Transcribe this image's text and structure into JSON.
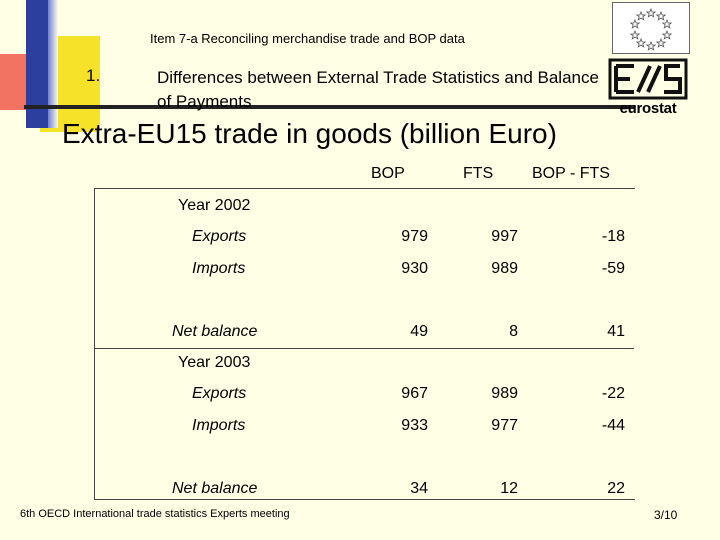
{
  "header": {
    "item_title": "Item 7-a  Reconciling merchandise trade and BOP data",
    "section_number": "1.",
    "section_title": "Differences between External Trade Statistics and Balance of Payments"
  },
  "logo": {
    "wordmark": "eurostat"
  },
  "main_title": "Extra-EU15 trade in goods (billion Euro)",
  "table": {
    "columns": [
      "BOP",
      "FTS",
      "BOP - FTS"
    ],
    "groups": [
      {
        "year_label": "Year 2002",
        "rows": [
          {
            "label": "Exports",
            "values": [
              "979",
              "997",
              "-18"
            ]
          },
          {
            "label": "Imports",
            "values": [
              "930",
              "989",
              "-59"
            ]
          },
          {
            "label": "Net balance",
            "values": [
              "49",
              "8",
              "41"
            ]
          }
        ]
      },
      {
        "year_label": "Year 2003",
        "rows": [
          {
            "label": "Exports",
            "values": [
              "967",
              "989",
              "-22"
            ]
          },
          {
            "label": "Imports",
            "values": [
              "933",
              "977",
              "-44"
            ]
          },
          {
            "label": "Net balance",
            "values": [
              "34",
              "12",
              "22"
            ]
          }
        ]
      }
    ]
  },
  "footer": {
    "meeting": "6th OECD International trade statistics Experts meeting",
    "page": "3/10"
  },
  "colors": {
    "background": "#ffffe6",
    "blue": "#2d3f9e",
    "yellow": "#f7e22a",
    "red": "#f05a4a"
  }
}
